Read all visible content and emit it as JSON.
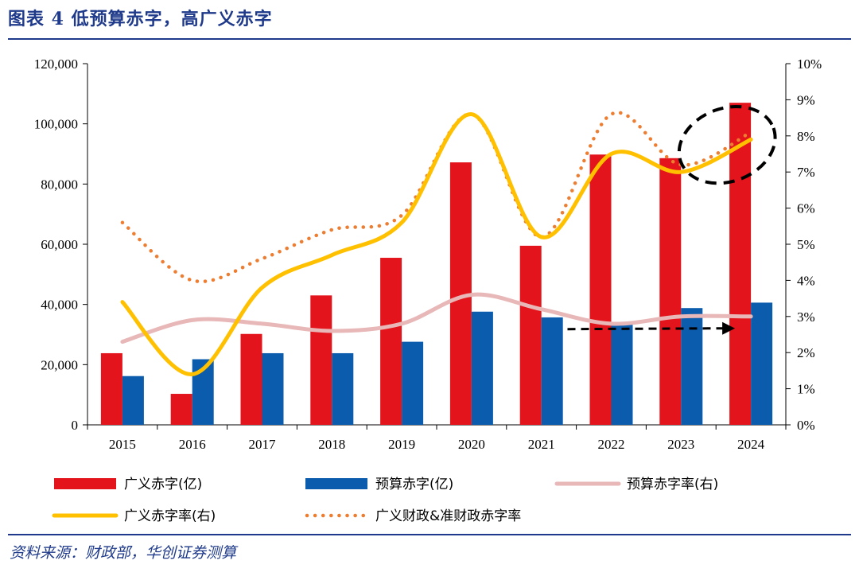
{
  "header": {
    "title": "图表 4    低预算赤字，高广义赤字"
  },
  "footer": {
    "source": "资料来源：财政部，华创证券测算"
  },
  "colors": {
    "broad_deficit": "#e3141b",
    "budget_deficit": "#0b5cad",
    "budget_rate": "#e8b7b7",
    "broad_rate": "#ffc000",
    "broad_quasi_rate": "#ed7d31",
    "accent": "#1f3a8a"
  },
  "chart_data": {
    "type": "bar",
    "categories": [
      "2015",
      "2016",
      "2017",
      "2018",
      "2019",
      "2020",
      "2021",
      "2022",
      "2023",
      "2024"
    ],
    "series": [
      {
        "name": "广义赤字(亿)",
        "type": "bar",
        "axis": "left",
        "values": [
          23800,
          10300,
          30200,
          43000,
          55500,
          87200,
          59500,
          89800,
          88600,
          107000
        ]
      },
      {
        "name": "预算赤字(亿)",
        "type": "bar",
        "axis": "left",
        "values": [
          16200,
          21800,
          23800,
          23800,
          27600,
          37600,
          35700,
          33700,
          38800,
          40600
        ]
      },
      {
        "name": "预算赤字率(右)",
        "type": "line",
        "axis": "right",
        "values": [
          2.3,
          2.9,
          2.8,
          2.6,
          2.8,
          3.6,
          3.2,
          2.8,
          3.0,
          3.0
        ]
      },
      {
        "name": "广义赤字率(右)",
        "type": "line",
        "axis": "right",
        "values": [
          3.4,
          1.4,
          3.8,
          4.7,
          5.6,
          8.6,
          5.2,
          7.5,
          7.0,
          7.9
        ]
      },
      {
        "name": "广义财政&准财政赤字率",
        "type": "dotted-line",
        "axis": "right",
        "values": [
          5.6,
          4.0,
          4.6,
          5.4,
          5.8,
          8.6,
          5.2,
          8.6,
          7.2,
          8.1
        ]
      }
    ],
    "y_left": {
      "ylim": [
        0,
        120000
      ],
      "ticks": [
        "0",
        "20,000",
        "40,000",
        "60,000",
        "80,000",
        "100,000",
        "120,000"
      ]
    },
    "y_right": {
      "ylim": [
        0,
        10
      ],
      "ticks": [
        "0%",
        "1%",
        "2%",
        "3%",
        "4%",
        "5%",
        "6%",
        "7%",
        "8%",
        "9%",
        "10%"
      ]
    },
    "annotations": [
      {
        "kind": "dashed-ellipse",
        "target": "2023-2024 广义赤字率"
      },
      {
        "kind": "dashed-arrow",
        "target": "2022-2024 预算赤字率"
      }
    ],
    "legend": {
      "placement": "bottom",
      "items": [
        "广义赤字(亿)",
        "预算赤字(亿)",
        "预算赤字率(右)",
        "广义赤字率(右)",
        "广义财政&准财政赤字率"
      ]
    },
    "grid": false
  }
}
